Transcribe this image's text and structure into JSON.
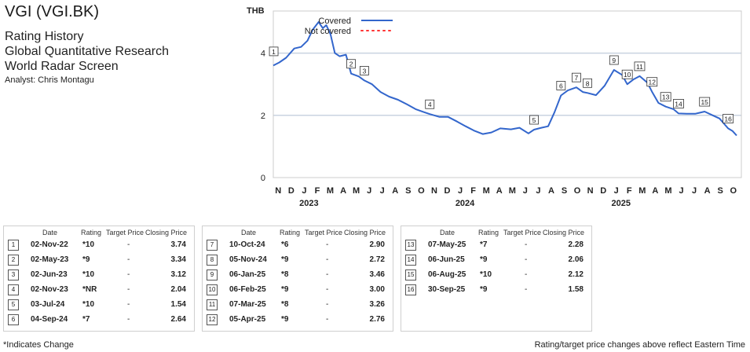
{
  "header": {
    "title": "VGI (VGI.BK)",
    "subtitles": [
      "Rating History",
      "Global Quantitative Research",
      "World Radar Screen"
    ],
    "analyst": "Analyst: Chris Montagu"
  },
  "chart_data": {
    "type": "line",
    "ylabel": "THB",
    "ylim": [
      0,
      5
    ],
    "yticks": [
      0,
      2,
      4
    ],
    "x_start": "2022-11",
    "x_end": "2025-10",
    "month_labels": [
      "N",
      "D",
      "J",
      "F",
      "M",
      "A",
      "M",
      "J",
      "J",
      "A",
      "S",
      "O",
      "N",
      "D",
      "J",
      "F",
      "M",
      "A",
      "M",
      "J",
      "J",
      "A",
      "S",
      "O",
      "N",
      "D",
      "J",
      "F",
      "M",
      "A",
      "M",
      "J",
      "J",
      "A",
      "S",
      "O"
    ],
    "year_labels": [
      "2023",
      "2024",
      "2025"
    ],
    "legend": [
      {
        "label": "Covered",
        "color": "#3366cc",
        "style": "solid"
      },
      {
        "label": "Not covered",
        "color": "#ff3333",
        "style": "dotted"
      }
    ],
    "series": [
      {
        "name": "Covered",
        "color": "#3366cc",
        "points": [
          [
            "2022-11-01",
            3.6
          ],
          [
            "2022-11-15",
            3.7
          ],
          [
            "2022-12-01",
            3.85
          ],
          [
            "2022-12-20",
            4.15
          ],
          [
            "2023-01-05",
            4.2
          ],
          [
            "2023-01-20",
            4.4
          ],
          [
            "2023-02-01",
            4.75
          ],
          [
            "2023-02-15",
            5.0
          ],
          [
            "2023-02-25",
            4.8
          ],
          [
            "2023-03-05",
            4.9
          ],
          [
            "2023-03-15",
            4.6
          ],
          [
            "2023-03-25",
            4.0
          ],
          [
            "2023-04-05",
            3.9
          ],
          [
            "2023-04-20",
            3.95
          ],
          [
            "2023-05-02",
            3.34
          ],
          [
            "2023-05-20",
            3.25
          ],
          [
            "2023-06-02",
            3.12
          ],
          [
            "2023-06-20",
            3.0
          ],
          [
            "2023-07-10",
            2.75
          ],
          [
            "2023-07-30",
            2.6
          ],
          [
            "2023-08-20",
            2.5
          ],
          [
            "2023-09-10",
            2.35
          ],
          [
            "2023-09-30",
            2.2
          ],
          [
            "2023-10-20",
            2.1
          ],
          [
            "2023-11-02",
            2.04
          ],
          [
            "2023-11-25",
            1.95
          ],
          [
            "2023-12-15",
            1.95
          ],
          [
            "2024-01-05",
            1.8
          ],
          [
            "2024-01-25",
            1.65
          ],
          [
            "2024-02-15",
            1.5
          ],
          [
            "2024-03-05",
            1.4
          ],
          [
            "2024-03-25",
            1.45
          ],
          [
            "2024-04-15",
            1.58
          ],
          [
            "2024-05-10",
            1.55
          ],
          [
            "2024-05-30",
            1.6
          ],
          [
            "2024-06-20",
            1.42
          ],
          [
            "2024-07-03",
            1.54
          ],
          [
            "2024-07-20",
            1.6
          ],
          [
            "2024-08-05",
            1.65
          ],
          [
            "2024-08-20",
            2.1
          ],
          [
            "2024-09-04",
            2.64
          ],
          [
            "2024-09-20",
            2.8
          ],
          [
            "2024-10-10",
            2.9
          ],
          [
            "2024-10-25",
            2.75
          ],
          [
            "2024-11-05",
            2.72
          ],
          [
            "2024-11-25",
            2.65
          ],
          [
            "2024-12-15",
            2.95
          ],
          [
            "2025-01-06",
            3.46
          ],
          [
            "2025-01-25",
            3.3
          ],
          [
            "2025-02-06",
            3.0
          ],
          [
            "2025-02-20",
            3.15
          ],
          [
            "2025-03-07",
            3.26
          ],
          [
            "2025-03-25",
            3.05
          ],
          [
            "2025-04-05",
            2.76
          ],
          [
            "2025-04-20",
            2.4
          ],
          [
            "2025-05-07",
            2.28
          ],
          [
            "2025-05-25",
            2.2
          ],
          [
            "2025-06-06",
            2.06
          ],
          [
            "2025-06-25",
            2.05
          ],
          [
            "2025-07-15",
            2.05
          ],
          [
            "2025-08-06",
            2.12
          ],
          [
            "2025-08-25",
            2.0
          ],
          [
            "2025-09-10",
            1.9
          ],
          [
            "2025-09-30",
            1.58
          ],
          [
            "2025-10-10",
            1.5
          ],
          [
            "2025-10-20",
            1.35
          ]
        ]
      }
    ],
    "markers": [
      {
        "id": "1",
        "date": "2022-11-02",
        "price": 3.74
      },
      {
        "id": "2",
        "date": "2023-05-02",
        "price": 3.34
      },
      {
        "id": "3",
        "date": "2023-06-02",
        "price": 3.12
      },
      {
        "id": "4",
        "date": "2023-11-02",
        "price": 2.04
      },
      {
        "id": "5",
        "date": "2024-07-03",
        "price": 1.54
      },
      {
        "id": "6",
        "date": "2024-09-04",
        "price": 2.64
      },
      {
        "id": "7",
        "date": "2024-10-10",
        "price": 2.9
      },
      {
        "id": "8",
        "date": "2024-11-05",
        "price": 2.72
      },
      {
        "id": "9",
        "date": "2025-01-06",
        "price": 3.46
      },
      {
        "id": "10",
        "date": "2025-02-06",
        "price": 3.0
      },
      {
        "id": "11",
        "date": "2025-03-07",
        "price": 3.26
      },
      {
        "id": "12",
        "date": "2025-04-05",
        "price": 2.76
      },
      {
        "id": "13",
        "date": "2025-05-07",
        "price": 2.28
      },
      {
        "id": "14",
        "date": "2025-06-06",
        "price": 2.06
      },
      {
        "id": "15",
        "date": "2025-08-06",
        "price": 2.12
      },
      {
        "id": "16",
        "date": "2025-09-30",
        "price": 1.58
      }
    ]
  },
  "table": {
    "headers": {
      "date": "Date",
      "rating": "Rating",
      "target": "Target Price",
      "closing": "Closing Price"
    },
    "groups": [
      [
        {
          "num": "1",
          "date": "02-Nov-22",
          "rating": "*10",
          "target": "-",
          "closing": "3.74"
        },
        {
          "num": "2",
          "date": "02-May-23",
          "rating": "*9",
          "target": "-",
          "closing": "3.34"
        },
        {
          "num": "3",
          "date": "02-Jun-23",
          "rating": "*10",
          "target": "-",
          "closing": "3.12"
        },
        {
          "num": "4",
          "date": "02-Nov-23",
          "rating": "*NR",
          "target": "-",
          "closing": "2.04"
        },
        {
          "num": "5",
          "date": "03-Jul-24",
          "rating": "*10",
          "target": "-",
          "closing": "1.54"
        },
        {
          "num": "6",
          "date": "04-Sep-24",
          "rating": "*7",
          "target": "-",
          "closing": "2.64"
        }
      ],
      [
        {
          "num": "7",
          "date": "10-Oct-24",
          "rating": "*6",
          "target": "-",
          "closing": "2.90"
        },
        {
          "num": "8",
          "date": "05-Nov-24",
          "rating": "*9",
          "target": "-",
          "closing": "2.72"
        },
        {
          "num": "9",
          "date": "06-Jan-25",
          "rating": "*8",
          "target": "-",
          "closing": "3.46"
        },
        {
          "num": "10",
          "date": "06-Feb-25",
          "rating": "*9",
          "target": "-",
          "closing": "3.00"
        },
        {
          "num": "11",
          "date": "07-Mar-25",
          "rating": "*8",
          "target": "-",
          "closing": "3.26"
        },
        {
          "num": "12",
          "date": "05-Apr-25",
          "rating": "*9",
          "target": "-",
          "closing": "2.76"
        }
      ],
      [
        {
          "num": "13",
          "date": "07-May-25",
          "rating": "*7",
          "target": "-",
          "closing": "2.28"
        },
        {
          "num": "14",
          "date": "06-Jun-25",
          "rating": "*9",
          "target": "-",
          "closing": "2.06"
        },
        {
          "num": "15",
          "date": "06-Aug-25",
          "rating": "*10",
          "target": "-",
          "closing": "2.12"
        },
        {
          "num": "16",
          "date": "30-Sep-25",
          "rating": "*9",
          "target": "-",
          "closing": "1.58"
        }
      ]
    ]
  },
  "footnote": "*Indicates Change",
  "footnote_right": "Rating/target price changes above reflect Eastern Time"
}
